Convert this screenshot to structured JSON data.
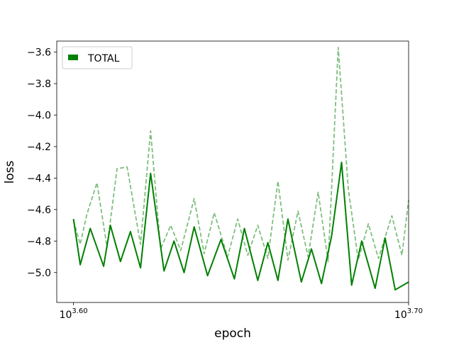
{
  "chart_data": {
    "type": "line",
    "title": "",
    "xlabel": "epoch",
    "ylabel": "loss",
    "xscale": "log",
    "xlim_log10": [
      3.595,
      3.7
    ],
    "ylim": [
      -5.19,
      -3.53
    ],
    "xticks": [
      {
        "base": "10",
        "exp": "3.60",
        "log10": 3.6
      },
      {
        "base": "10",
        "exp": "3.70",
        "log10": 3.7
      }
    ],
    "yticks": [
      {
        "label": "−3.6",
        "value": -3.6
      },
      {
        "label": "−3.8",
        "value": -3.8
      },
      {
        "label": "−4.0",
        "value": -4.0
      },
      {
        "label": "−4.2",
        "value": -4.2
      },
      {
        "label": "−4.4",
        "value": -4.4
      },
      {
        "label": "−4.6",
        "value": -4.6
      },
      {
        "label": "−4.8",
        "value": -4.8
      },
      {
        "label": "−5.0",
        "value": -5.0
      }
    ],
    "grid": false,
    "legend": {
      "placement": "top-left",
      "entries": [
        {
          "label": "TOTAL",
          "color": "#008000"
        }
      ]
    },
    "series": [
      {
        "name": "TOTAL",
        "style": "solid",
        "color": "#008000",
        "x_log10": [
          3.6,
          3.602,
          3.605,
          3.609,
          3.611,
          3.614,
          3.617,
          3.62,
          3.623,
          3.627,
          3.63,
          3.633,
          3.636,
          3.64,
          3.644,
          3.648,
          3.651,
          3.655,
          3.658,
          3.661,
          3.664,
          3.668,
          3.671,
          3.674,
          3.677,
          3.68,
          3.683,
          3.686,
          3.69,
          3.693,
          3.696,
          3.7
        ],
        "y": [
          -4.66,
          -4.95,
          -4.72,
          -4.96,
          -4.7,
          -4.93,
          -4.74,
          -4.97,
          -4.37,
          -4.99,
          -4.8,
          -5.0,
          -4.71,
          -5.02,
          -4.79,
          -5.04,
          -4.72,
          -5.05,
          -4.81,
          -5.05,
          -4.66,
          -5.06,
          -4.85,
          -5.07,
          -4.77,
          -4.3,
          -5.08,
          -4.8,
          -5.1,
          -4.78,
          -5.11,
          -5.06
        ]
      },
      {
        "name": "TOTAL",
        "style": "dashed",
        "color": "#7fbf7f",
        "x_log10": [
          3.6,
          3.602,
          3.604,
          3.607,
          3.61,
          3.613,
          3.616,
          3.62,
          3.623,
          3.626,
          3.629,
          3.632,
          3.636,
          3.639,
          3.642,
          3.646,
          3.649,
          3.652,
          3.655,
          3.658,
          3.661,
          3.664,
          3.667,
          3.67,
          3.673,
          3.676,
          3.679,
          3.682,
          3.685,
          3.688,
          3.691,
          3.695,
          3.698,
          3.7
        ],
        "y": [
          -4.67,
          -4.82,
          -4.63,
          -4.43,
          -4.84,
          -4.34,
          -4.33,
          -4.82,
          -4.1,
          -4.85,
          -4.7,
          -4.86,
          -4.53,
          -4.88,
          -4.62,
          -4.9,
          -4.66,
          -4.89,
          -4.7,
          -4.91,
          -4.42,
          -4.92,
          -4.61,
          -4.9,
          -4.49,
          -4.93,
          -3.57,
          -4.47,
          -4.92,
          -4.69,
          -4.91,
          -4.64,
          -4.89,
          -4.54
        ]
      }
    ]
  }
}
